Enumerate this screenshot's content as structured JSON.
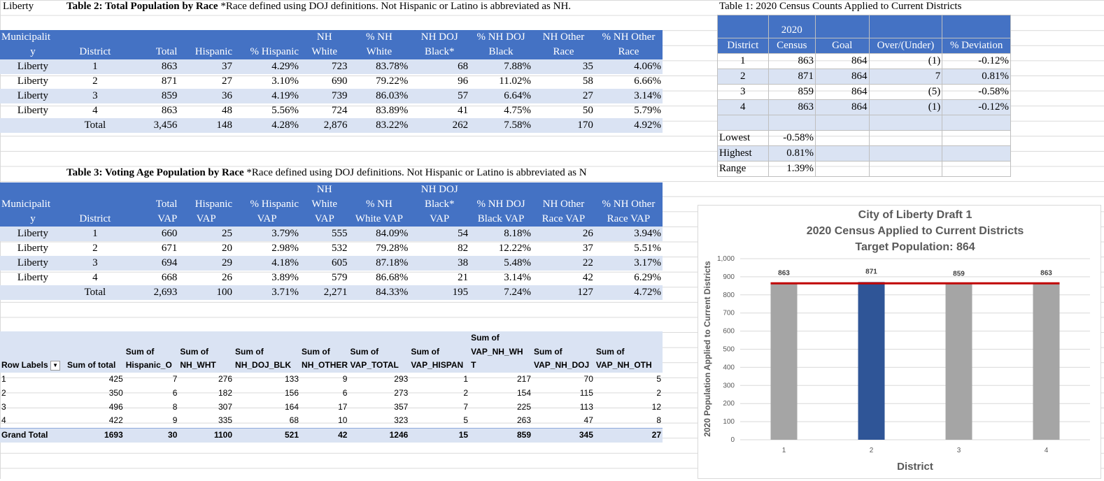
{
  "top": {
    "cell_a1": "Liberty",
    "table2_title": "Table 2: Total Population by Race",
    "table2_note": " *Race defined using DOJ definitions. Not Hispanic or Latino is abbreviated as NH.",
    "table1_title": "Table 1: 2020 Census Counts Applied to Current Districts"
  },
  "table2": {
    "headers": {
      "muni1": "Municipalit",
      "muni2": "y",
      "district": "District",
      "total": "Total",
      "hispanic": "Hispanic",
      "pct_hispanic": "% Hispanic",
      "nhwhite1": "NH",
      "nhwhite2": "White",
      "pct_nhwhite1": "% NH",
      "pct_nhwhite2": "White",
      "nhblack1": "NH DOJ",
      "nhblack2": "Black*",
      "pct_nhblack1": "% NH DOJ",
      "pct_nhblack2": "Black",
      "nhother1": "NH Other",
      "nhother2": "Race",
      "pct_nhother1": "% NH Other",
      "pct_nhother2": "Race"
    },
    "rows": [
      [
        "Liberty",
        "1",
        "863",
        "37",
        "4.29%",
        "723",
        "83.78%",
        "68",
        "7.88%",
        "35",
        "4.06%"
      ],
      [
        "Liberty",
        "2",
        "871",
        "27",
        "3.10%",
        "690",
        "79.22%",
        "96",
        "11.02%",
        "58",
        "6.66%"
      ],
      [
        "Liberty",
        "3",
        "859",
        "36",
        "4.19%",
        "739",
        "86.03%",
        "57",
        "6.64%",
        "27",
        "3.14%"
      ],
      [
        "Liberty",
        "4",
        "863",
        "48",
        "5.56%",
        "724",
        "83.89%",
        "41",
        "4.75%",
        "50",
        "5.79%"
      ]
    ],
    "total": [
      "",
      "Total",
      "3,456",
      "148",
      "4.28%",
      "2,876",
      "83.22%",
      "262",
      "7.58%",
      "170",
      "4.92%"
    ]
  },
  "table3": {
    "title": "Table 3: Voting Age Population by Race",
    "note": " *Race defined using DOJ definitions. Not Hispanic or Latino is abbreviated as N",
    "headers": {
      "nh": "NH",
      "nhdoj": "NH DOJ",
      "muni1": "Municipalit",
      "muni2": "y",
      "district": "District",
      "total1": "Total",
      "total2": "VAP",
      "hisp1": "Hispanic",
      "hisp2": "VAP",
      "phisp1": "% Hispanic",
      "phisp2": "VAP",
      "white1": "White",
      "white2": "VAP",
      "pwhite1": "% NH",
      "pwhite2": "White VAP",
      "black1": "Black*",
      "black2": "VAP",
      "pblack1": "% NH DOJ",
      "pblack2": "Black VAP",
      "other1": "NH Other",
      "other2": "Race VAP",
      "pother1": "% NH Other",
      "pother2": "Race VAP"
    },
    "rows": [
      [
        "Liberty",
        "1",
        "660",
        "25",
        "3.79%",
        "555",
        "84.09%",
        "54",
        "8.18%",
        "26",
        "3.94%"
      ],
      [
        "Liberty",
        "2",
        "671",
        "20",
        "2.98%",
        "532",
        "79.28%",
        "82",
        "12.22%",
        "37",
        "5.51%"
      ],
      [
        "Liberty",
        "3",
        "694",
        "29",
        "4.18%",
        "605",
        "87.18%",
        "38",
        "5.48%",
        "22",
        "3.17%"
      ],
      [
        "Liberty",
        "4",
        "668",
        "26",
        "3.89%",
        "579",
        "86.68%",
        "21",
        "3.14%",
        "42",
        "6.29%"
      ]
    ],
    "total": [
      "",
      "Total",
      "2,693",
      "100",
      "3.71%",
      "2,271",
      "84.33%",
      "195",
      "7.24%",
      "127",
      "4.72%"
    ]
  },
  "table1": {
    "headers": {
      "district": "District",
      "census1": "2020",
      "census2": "Census",
      "goal": "Goal",
      "over": "Over/(Under)",
      "dev": "% Deviation"
    },
    "rows": [
      [
        "1",
        "863",
        "864",
        "(1)",
        "-0.12%"
      ],
      [
        "2",
        "871",
        "864",
        "7",
        "0.81%"
      ],
      [
        "3",
        "859",
        "864",
        "(5)",
        "-0.58%"
      ],
      [
        "4",
        "863",
        "864",
        "(1)",
        "-0.12%"
      ]
    ],
    "stats": [
      {
        "label": "Lowest",
        "value": "-0.58%"
      },
      {
        "label": "Highest",
        "value": "0.81%"
      },
      {
        "label": "Range",
        "value": "1.39%"
      }
    ]
  },
  "pivot": {
    "headers": {
      "row_labels": "Row Labels",
      "sum_total": "Sum of total",
      "hisp": [
        "Sum of",
        "Hispanic_O"
      ],
      "nhwht": [
        "Sum of",
        "NH_WHT"
      ],
      "nhdojblk": [
        "Sum of",
        "NH_DOJ_BLK"
      ],
      "nhother": [
        "Sum of",
        "NH_OTHER"
      ],
      "vaptotal": [
        "Sum of",
        "VAP_TOTAL"
      ],
      "vaphisp": [
        "Sum of",
        "VAP_HISPAN"
      ],
      "vapnhwh": [
        "Sum of",
        "VAP_NH_WH",
        "T"
      ],
      "vapnhdoj": [
        "Sum of",
        "VAP_NH_DOJ"
      ],
      "vapnhoth": [
        "Sum of",
        "VAP_NH_OTH"
      ]
    },
    "rows": [
      [
        "1",
        "425",
        "7",
        "276",
        "133",
        "9",
        "293",
        "1",
        "217",
        "70",
        "5"
      ],
      [
        "2",
        "350",
        "6",
        "182",
        "156",
        "6",
        "273",
        "2",
        "154",
        "115",
        "2"
      ],
      [
        "3",
        "496",
        "8",
        "307",
        "164",
        "17",
        "357",
        "7",
        "225",
        "113",
        "12"
      ],
      [
        "4",
        "422",
        "9",
        "335",
        "68",
        "10",
        "323",
        "5",
        "263",
        "47",
        "8"
      ]
    ],
    "grand_total": [
      "Grand Total",
      "1693",
      "30",
      "1100",
      "521",
      "42",
      "1246",
      "15",
      "859",
      "345",
      "27"
    ]
  },
  "chart_data": {
    "type": "bar",
    "title": [
      "City of Liberty Draft 1",
      "2020 Census Applied to Current Districts",
      "Target Population: 864"
    ],
    "categories": [
      "1",
      "2",
      "3",
      "4"
    ],
    "values": [
      863,
      871,
      859,
      863
    ],
    "data_labels": [
      "863",
      "871",
      "859",
      "863"
    ],
    "bar_colors": [
      "#a5a5a5",
      "#2f5597",
      "#a5a5a5",
      "#a5a5a5"
    ],
    "target": 864,
    "target_color": "#c00000",
    "xlabel": "District",
    "ylabel": "2020 Population Applied to Current Districts",
    "ylim": [
      0,
      1000
    ],
    "yticks": [
      "0",
      "100",
      "200",
      "300",
      "400",
      "500",
      "600",
      "700",
      "800",
      "900",
      "1,000"
    ],
    "grid": true
  }
}
